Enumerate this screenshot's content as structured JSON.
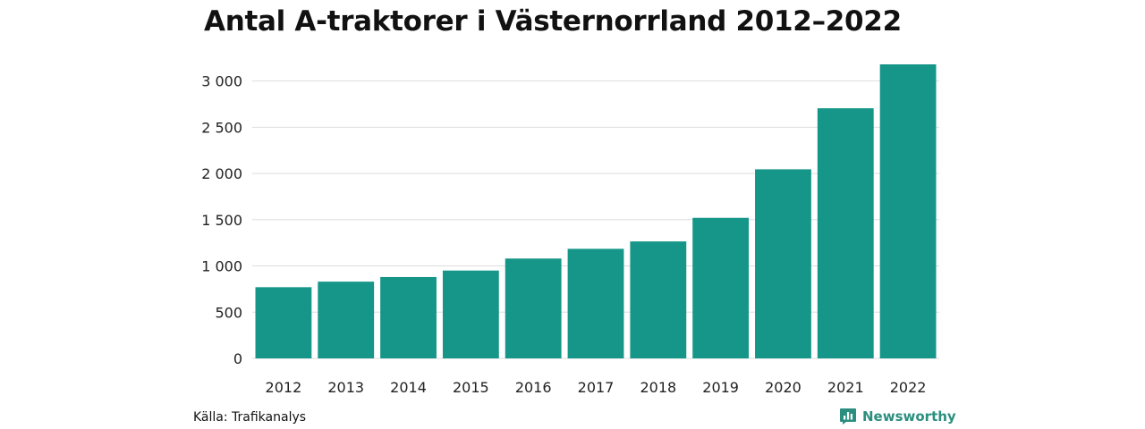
{
  "colors": {
    "bar": "#159688",
    "grid": "#dddddd",
    "brand": "#2b8f7f"
  },
  "chart_data": {
    "type": "bar",
    "title": "Antal A-traktorer i Västernorrland 2012–2022",
    "xlabel": "",
    "ylabel": "",
    "categories": [
      "2012",
      "2013",
      "2014",
      "2015",
      "2016",
      "2017",
      "2018",
      "2019",
      "2020",
      "2021",
      "2022"
    ],
    "values": [
      770,
      830,
      880,
      950,
      1080,
      1185,
      1265,
      1520,
      2045,
      2705,
      3180
    ],
    "ylim": [
      0,
      3180
    ],
    "yticks": [
      0,
      500,
      1000,
      1500,
      2000,
      2500,
      3000
    ],
    "ytick_labels": [
      "0",
      "500",
      "1 000",
      "1 500",
      "2 000",
      "2 500",
      "3 000"
    ],
    "grid": true,
    "legend": "none"
  },
  "footer": {
    "source": "Källa: Trafikanalys",
    "brand_name": "Newsworthy",
    "brand_icon": "newsworthy-logo-icon"
  }
}
